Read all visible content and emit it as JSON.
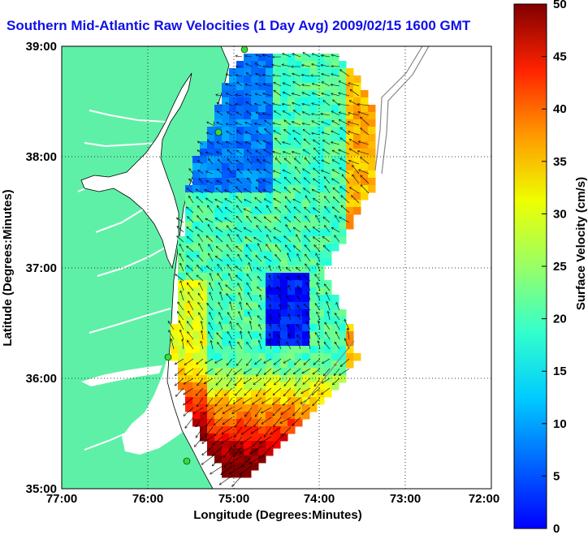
{
  "title": "Southern Mid-Atlantic Raw Velocities (1 Day Avg) 2009/02/15 1600 GMT",
  "x_axis": {
    "label": "Longitude (Degrees:Minutes)",
    "ticks": [
      "77:00",
      "76:00",
      "75:00",
      "74:00",
      "73:00",
      "72:00"
    ]
  },
  "y_axis": {
    "label": "Latitude (Degrees:Minutes)",
    "ticks": [
      "39:00",
      "38:00",
      "37:00",
      "36:00",
      "35:00"
    ]
  },
  "colorbar": {
    "label": "Surface Velocity (cm/s)",
    "ticks": [
      "50",
      "45",
      "40",
      "35",
      "30",
      "25",
      "20",
      "15",
      "10",
      "5",
      "0"
    ],
    "min": 0,
    "max": 50
  },
  "colors": {
    "land": "#5ff0a8",
    "title": "#1010e8",
    "site_marker": "#33dd33"
  }
}
